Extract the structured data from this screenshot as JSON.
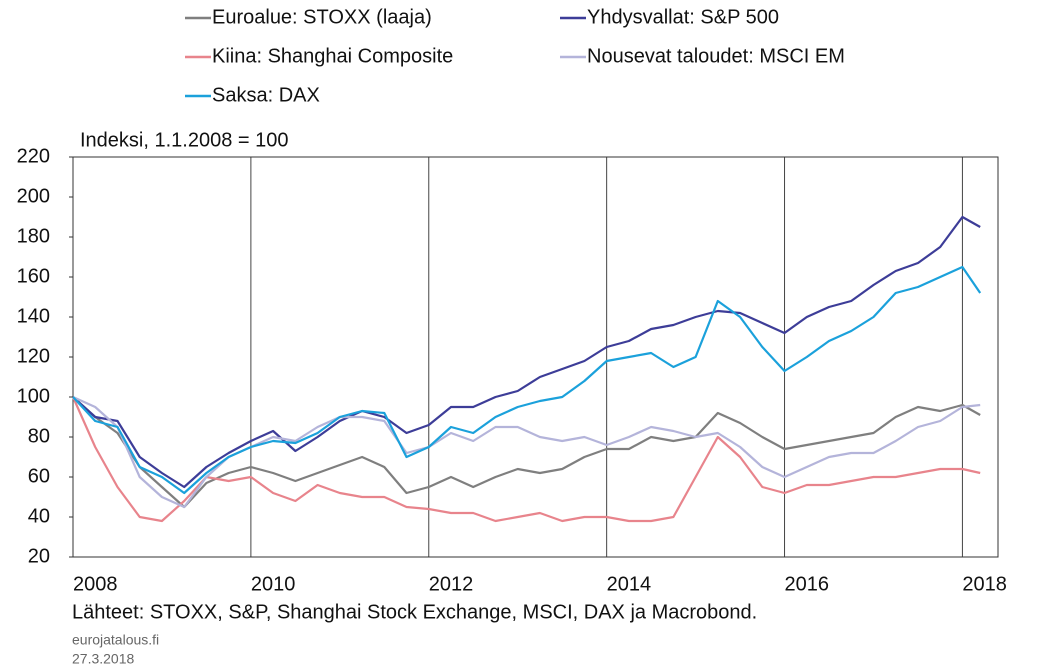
{
  "chart_data": {
    "type": "line",
    "subtitle": "Indeksi, 1.1.2008 = 100",
    "source": "Lähteet: STOXX, S&P, Shanghai Stock Exchange, MSCI, DAX ja Macrobond.",
    "site": "eurojatalous.fi",
    "date": "27.3.2018",
    "x": [
      2008.0,
      2008.25,
      2008.5,
      2008.75,
      2009.0,
      2009.25,
      2009.5,
      2009.75,
      2010.0,
      2010.25,
      2010.5,
      2010.75,
      2011.0,
      2011.25,
      2011.5,
      2011.75,
      2012.0,
      2012.25,
      2012.5,
      2012.75,
      2013.0,
      2013.25,
      2013.5,
      2013.75,
      2014.0,
      2014.25,
      2014.5,
      2014.75,
      2015.0,
      2015.25,
      2015.5,
      2015.75,
      2016.0,
      2016.25,
      2016.5,
      2016.75,
      2017.0,
      2017.25,
      2017.5,
      2017.75,
      2018.0,
      2018.2
    ],
    "series": [
      {
        "name": "Euroalue: STOXX (laaja)",
        "color": "#7f7f7f",
        "values": [
          100,
          90,
          82,
          65,
          55,
          45,
          57,
          62,
          65,
          62,
          58,
          62,
          66,
          70,
          65,
          52,
          55,
          60,
          55,
          60,
          64,
          62,
          64,
          70,
          74,
          74,
          80,
          78,
          80,
          92,
          87,
          80,
          74,
          76,
          78,
          80,
          82,
          90,
          95,
          93,
          96,
          91
        ]
      },
      {
        "name": "Yhdysvallat: S&P 500",
        "color": "#3d3d98",
        "values": [
          100,
          90,
          88,
          70,
          62,
          55,
          65,
          72,
          78,
          83,
          73,
          80,
          88,
          93,
          90,
          82,
          86,
          95,
          95,
          100,
          103,
          110,
          114,
          118,
          125,
          128,
          134,
          136,
          140,
          143,
          142,
          137,
          132,
          140,
          145,
          148,
          156,
          163,
          167,
          175,
          190,
          185
        ]
      },
      {
        "name": "Kiina: Shanghai Composite",
        "color": "#e8848c",
        "values": [
          100,
          75,
          55,
          40,
          38,
          48,
          60,
          58,
          60,
          52,
          48,
          56,
          52,
          50,
          50,
          45,
          44,
          42,
          42,
          38,
          40,
          42,
          38,
          40,
          40,
          38,
          38,
          40,
          60,
          80,
          70,
          55,
          52,
          56,
          56,
          58,
          60,
          60,
          62,
          64,
          64,
          62
        ]
      },
      {
        "name": "Nousevat taloudet: MSCI EM",
        "color": "#b4b4da",
        "values": [
          100,
          95,
          85,
          60,
          50,
          45,
          60,
          70,
          75,
          80,
          78,
          85,
          90,
          90,
          88,
          72,
          75,
          82,
          78,
          85,
          85,
          80,
          78,
          80,
          76,
          80,
          85,
          83,
          80,
          82,
          75,
          65,
          60,
          65,
          70,
          72,
          72,
          78,
          85,
          88,
          95,
          96
        ]
      },
      {
        "name": "Saksa: DAX",
        "color": "#1ba1db",
        "values": [
          100,
          88,
          85,
          65,
          60,
          52,
          62,
          70,
          75,
          78,
          77,
          82,
          90,
          93,
          92,
          70,
          75,
          85,
          82,
          90,
          95,
          98,
          100,
          108,
          118,
          120,
          122,
          115,
          120,
          148,
          140,
          125,
          113,
          120,
          128,
          133,
          140,
          152,
          155,
          160,
          165,
          152
        ]
      }
    ],
    "xlim": [
      2008,
      2018.4
    ],
    "xticks": [
      2008,
      2010,
      2012,
      2014,
      2016,
      2018
    ],
    "ylim": [
      20,
      220
    ],
    "yticks": [
      20,
      40,
      60,
      80,
      100,
      120,
      140,
      160,
      180,
      200,
      220
    ],
    "grid": "x"
  }
}
